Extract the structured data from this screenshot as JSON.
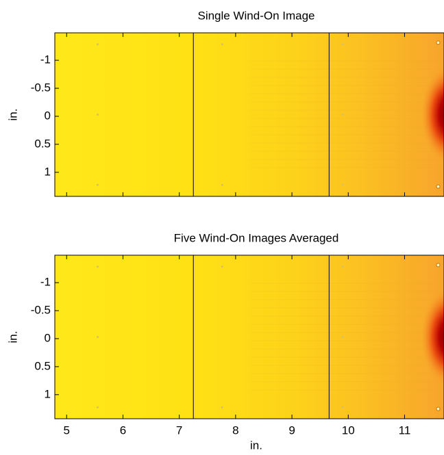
{
  "chart_data": [
    {
      "type": "image",
      "title": "Single Wind-On Image",
      "ylabel": "in.",
      "xlim": [
        4.79,
        11.7
      ],
      "xticks": [
        5,
        6,
        7,
        8,
        9,
        10,
        11
      ],
      "ylim": [
        -1.49,
        1.43
      ],
      "yticks": [
        -1,
        -0.5,
        0,
        0.5,
        1
      ],
      "y_reversed": true,
      "vertical_lines": [
        7.25,
        9.66
      ]
    },
    {
      "type": "image",
      "title": "Five Wind-On Images Averaged",
      "ylabel": "in.",
      "xlabel": "in.",
      "xlim": [
        4.79,
        11.7
      ],
      "xticks": [
        5,
        6,
        7,
        8,
        9,
        10,
        11
      ],
      "ylim": [
        -1.49,
        1.43
      ],
      "yticks": [
        -1,
        -0.5,
        0,
        0.5,
        1
      ],
      "y_reversed": true,
      "vertical_lines": [
        7.25,
        9.66
      ]
    }
  ]
}
